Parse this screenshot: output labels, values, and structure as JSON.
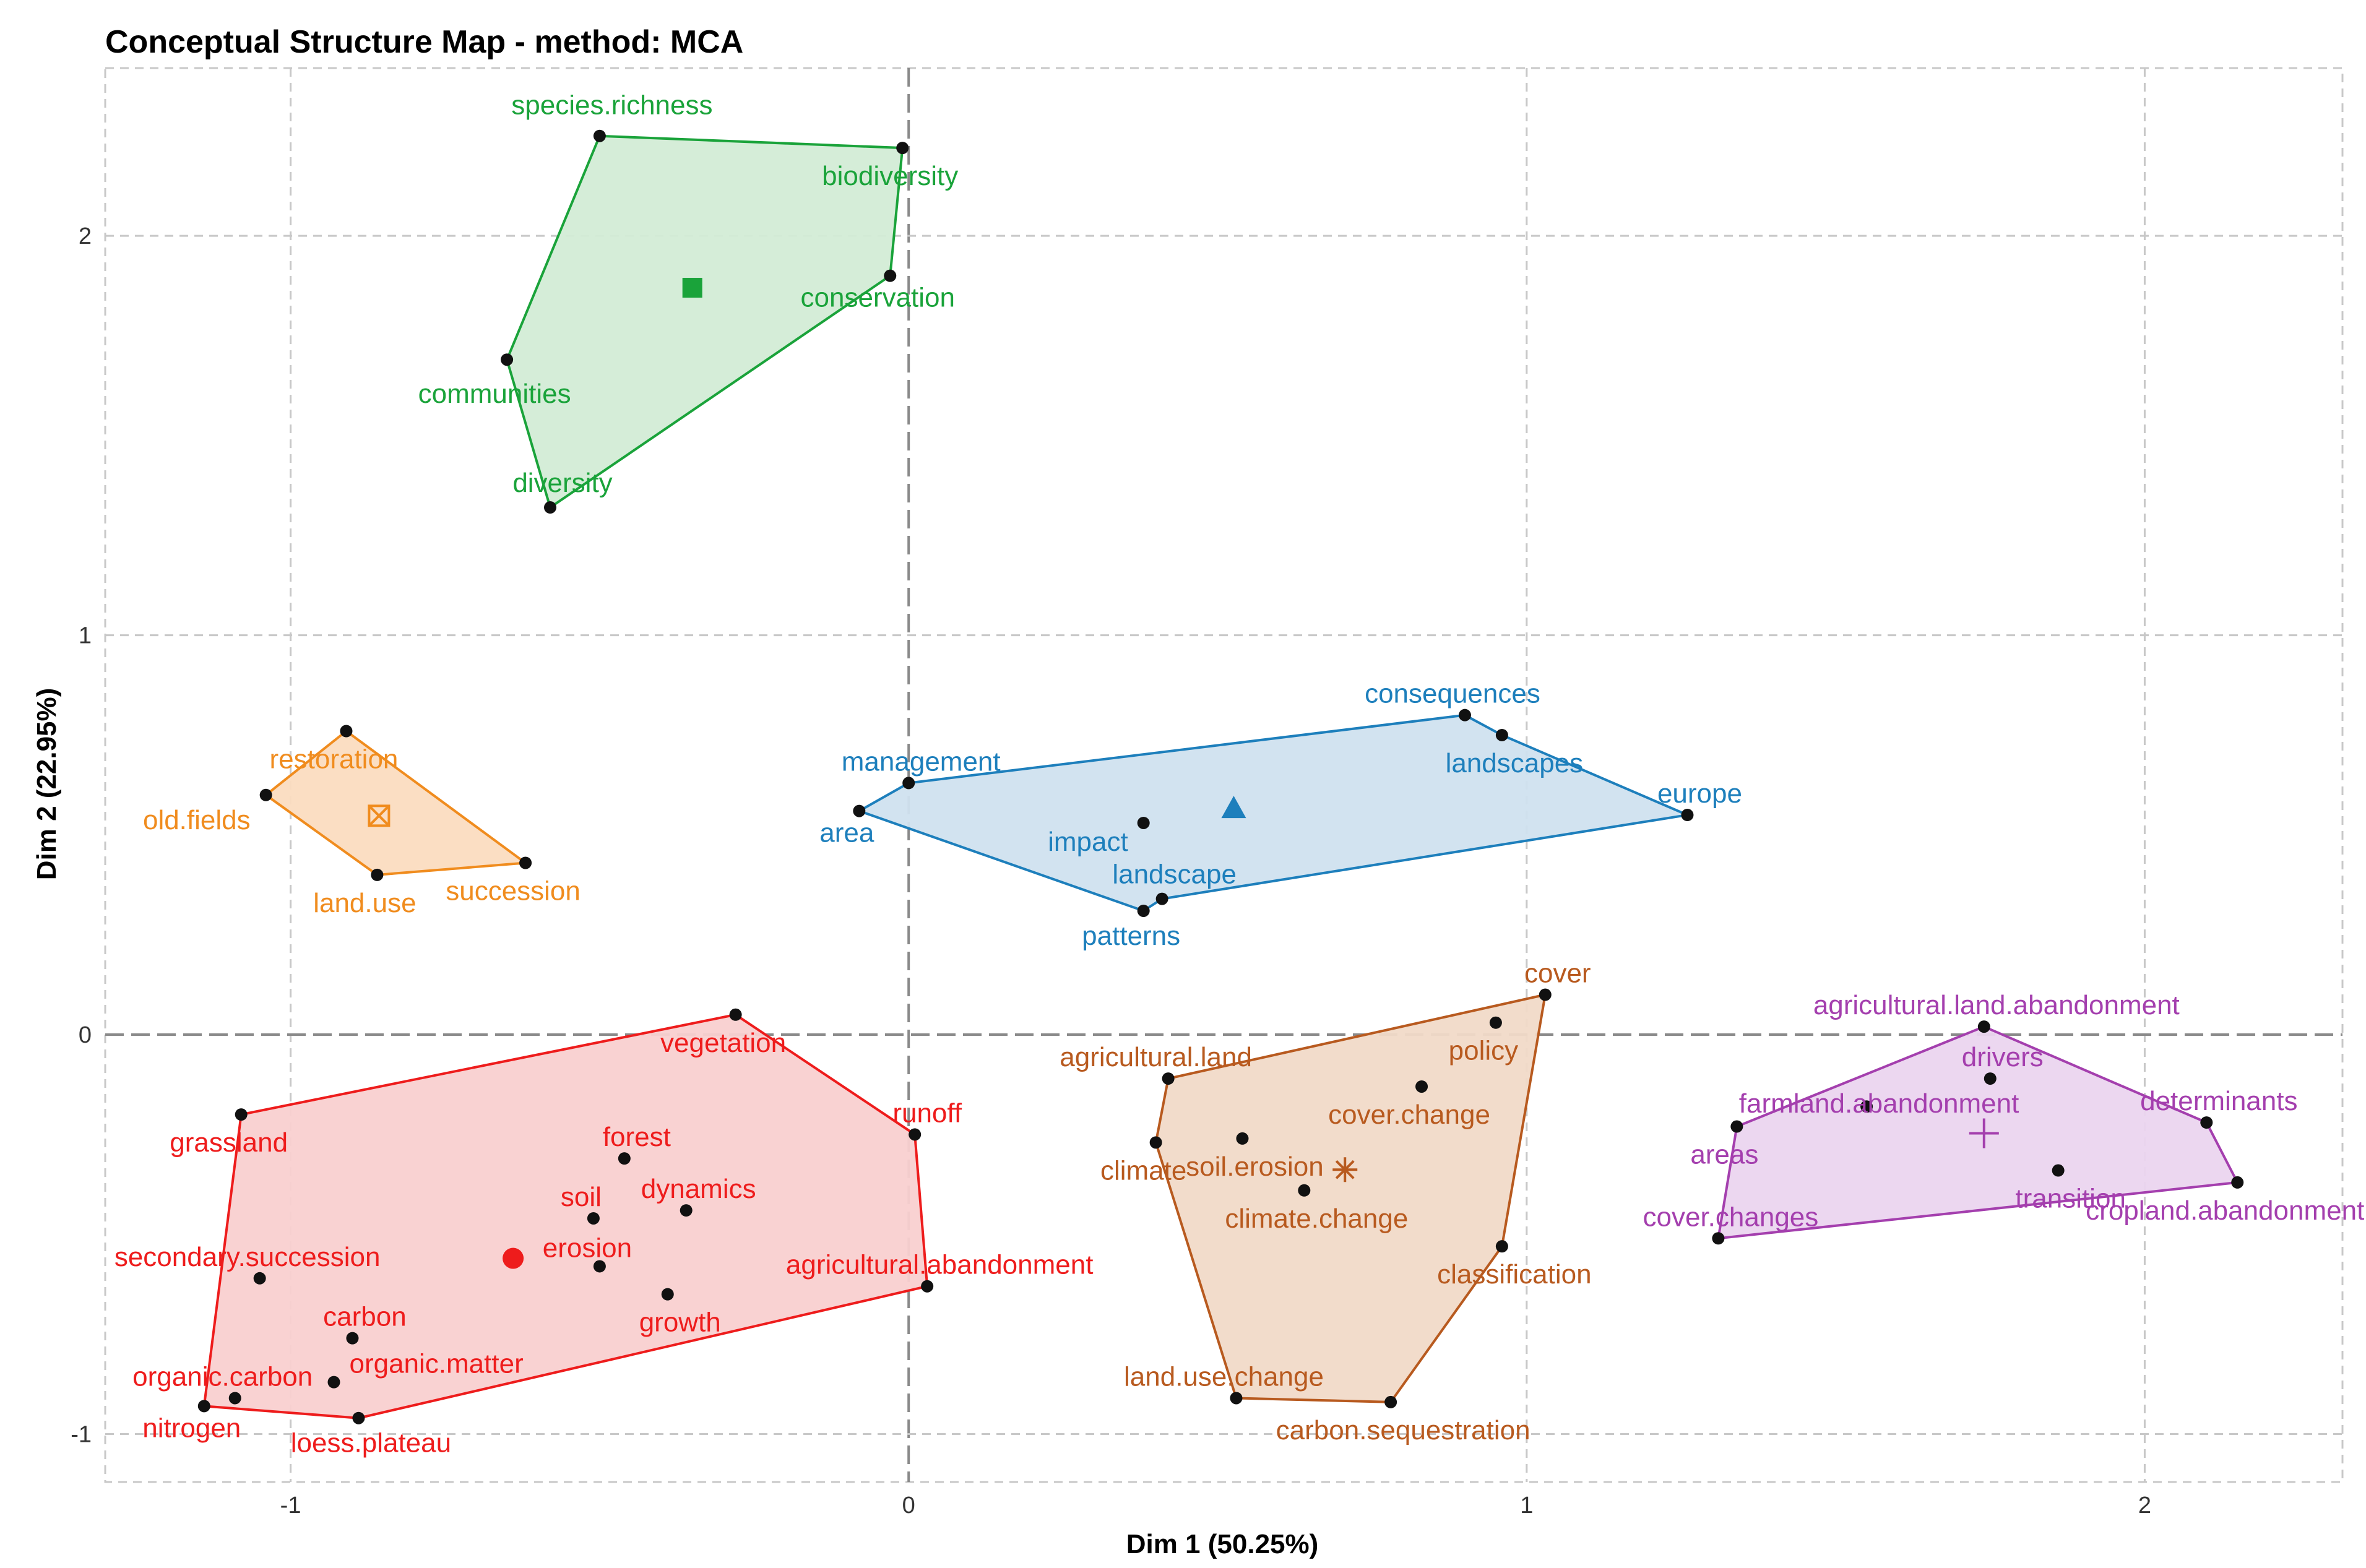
{
  "chart_data": {
    "type": "scatter",
    "title": "Conceptual Structure Map - method: MCA",
    "xlabel": "Dim 1 (50.25%)",
    "ylabel": "Dim 2 (22.95%)",
    "xlim": [
      -1.3,
      2.32
    ],
    "ylim": [
      -1.12,
      2.42
    ],
    "xticks": [
      -1,
      0,
      1,
      2
    ],
    "yticks": [
      -1,
      0,
      1,
      2
    ],
    "clusters": [
      {
        "name": "cluster-green",
        "color": "#1aa33a",
        "fill": "#d3ecd6",
        "centroid": {
          "x": -0.35,
          "y": 1.87,
          "shape": "square"
        },
        "hull": [
          "species.richness",
          "biodiversity",
          "conservation",
          "diversity",
          "communities"
        ],
        "points": [
          {
            "label": "species.richness",
            "x": -0.5,
            "y": 2.25
          },
          {
            "label": "biodiversity",
            "x": -0.01,
            "y": 2.22
          },
          {
            "label": "conservation",
            "x": -0.03,
            "y": 1.9
          },
          {
            "label": "communities",
            "x": -0.65,
            "y": 1.69
          },
          {
            "label": "diversity",
            "x": -0.58,
            "y": 1.32
          }
        ]
      },
      {
        "name": "cluster-orange",
        "color": "#f08c1e",
        "fill": "#fbdcc0",
        "centroid": {
          "x": -0.857,
          "y": 0.548,
          "shape": "square-cross"
        },
        "hull": [
          "restoration",
          "succession",
          "land.use",
          "old.fields"
        ],
        "points": [
          {
            "label": "restoration",
            "x": -0.91,
            "y": 0.76
          },
          {
            "label": "old.fields",
            "x": -1.04,
            "y": 0.6
          },
          {
            "label": "land.use",
            "x": -0.86,
            "y": 0.4
          },
          {
            "label": "succession",
            "x": -0.62,
            "y": 0.43
          }
        ]
      },
      {
        "name": "cluster-blue",
        "color": "#1d7fbc",
        "fill": "#d0e2ef",
        "centroid": {
          "x": 0.526,
          "y": 0.567,
          "shape": "triangle"
        },
        "hull": [
          "consequences",
          "landscapes",
          "europe",
          "landscape",
          "patterns",
          "area",
          "management"
        ],
        "points": [
          {
            "label": "consequences",
            "x": 0.9,
            "y": 0.8
          },
          {
            "label": "landscapes",
            "x": 0.96,
            "y": 0.75
          },
          {
            "label": "management",
            "x": 0.0,
            "y": 0.63
          },
          {
            "label": "area",
            "x": -0.08,
            "y": 0.56
          },
          {
            "label": "impact",
            "x": 0.38,
            "y": 0.53
          },
          {
            "label": "europe",
            "x": 1.26,
            "y": 0.55
          },
          {
            "label": "landscape",
            "x": 0.41,
            "y": 0.34
          },
          {
            "label": "patterns",
            "x": 0.38,
            "y": 0.31
          }
        ]
      },
      {
        "name": "cluster-red",
        "color": "#ee1c1c",
        "fill": "#f9d0d0",
        "centroid": {
          "x": -0.64,
          "y": -0.56,
          "shape": "circle"
        },
        "hull": [
          "vegetation",
          "runoff",
          "agricultural.abandonment",
          "loess.plateau",
          "nitrogen",
          "grassland"
        ],
        "points": [
          {
            "label": "vegetation",
            "x": -0.28,
            "y": 0.05
          },
          {
            "label": "grassland",
            "x": -1.08,
            "y": -0.2
          },
          {
            "label": "runoff",
            "x": 0.01,
            "y": -0.25
          },
          {
            "label": "forest",
            "x": -0.46,
            "y": -0.31
          },
          {
            "label": "dynamics",
            "x": -0.36,
            "y": -0.44
          },
          {
            "label": "soil",
            "x": -0.51,
            "y": -0.46
          },
          {
            "label": "erosion",
            "x": -0.5,
            "y": -0.58
          },
          {
            "label": "secondary.succession",
            "x": -1.05,
            "y": -0.61
          },
          {
            "label": "agricultural.abandonment",
            "x": 0.03,
            "y": -0.63
          },
          {
            "label": "growth",
            "x": -0.39,
            "y": -0.65
          },
          {
            "label": "carbon",
            "x": -0.9,
            "y": -0.76
          },
          {
            "label": "organic.matter",
            "x": -0.93,
            "y": -0.87
          },
          {
            "label": "organic.carbon",
            "x": -1.09,
            "y": -0.91
          },
          {
            "label": "nitrogen",
            "x": -1.14,
            "y": -0.93
          },
          {
            "label": "loess.plateau",
            "x": -0.89,
            "y": -0.96
          }
        ]
      },
      {
        "name": "cluster-brown",
        "color": "#b85a1f",
        "fill": "#f1dac8",
        "centroid": {
          "x": 0.706,
          "y": -0.338,
          "shape": "asterisk"
        },
        "hull": [
          "cover",
          "classification",
          "carbon.sequestration",
          "land.use.change",
          "climate",
          "agricultural.land"
        ],
        "points": [
          {
            "label": "cover",
            "x": 1.03,
            "y": 0.1
          },
          {
            "label": "policy",
            "x": 0.95,
            "y": 0.03
          },
          {
            "label": "agricultural.land",
            "x": 0.42,
            "y": -0.11
          },
          {
            "label": "cover.change",
            "x": 0.83,
            "y": -0.13
          },
          {
            "label": "climate",
            "x": 0.4,
            "y": -0.27
          },
          {
            "label": "soil.erosion",
            "x": 0.54,
            "y": -0.26
          },
          {
            "label": "climate.change",
            "x": 0.64,
            "y": -0.39
          },
          {
            "label": "classification",
            "x": 0.96,
            "y": -0.53
          },
          {
            "label": "land.use.change",
            "x": 0.53,
            "y": -0.91
          },
          {
            "label": "carbon.sequestration",
            "x": 0.78,
            "y": -0.92
          }
        ]
      },
      {
        "name": "cluster-purple",
        "color": "#a43fae",
        "fill": "#ebd5ef",
        "centroid": {
          "x": 1.74,
          "y": -0.247,
          "shape": "plus"
        },
        "hull": [
          "agricultural.land.abandonment",
          "determinants",
          "cropland.abandonment",
          "cover.changes",
          "areas"
        ],
        "points": [
          {
            "label": "agricultural.land.abandonment",
            "x": 1.74,
            "y": 0.02
          },
          {
            "label": "drivers",
            "x": 1.75,
            "y": -0.11
          },
          {
            "label": "farmland.abandonment",
            "x": 1.55,
            "y": -0.18
          },
          {
            "label": "determinants",
            "x": 2.1,
            "y": -0.22
          },
          {
            "label": "areas",
            "x": 1.34,
            "y": -0.23
          },
          {
            "label": "transition",
            "x": 1.86,
            "y": -0.34
          },
          {
            "label": "cropland.abandonment",
            "x": 2.15,
            "y": -0.37
          },
          {
            "label": "cover.changes",
            "x": 1.31,
            "y": -0.51
          }
        ]
      }
    ]
  }
}
